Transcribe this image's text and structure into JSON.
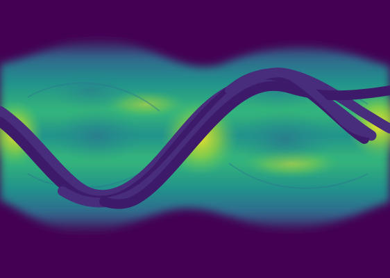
{
  "image": {
    "subject": "sinogram",
    "colormap": "viridis",
    "colors": {
      "background": "#440154",
      "band_edge": "#3b528b",
      "band_mid": "#21908d",
      "band_bright": "#5ec962",
      "band_peak": "#fde725",
      "trace": "#472d7b",
      "trace_dark": "#3e1a6b"
    }
  }
}
